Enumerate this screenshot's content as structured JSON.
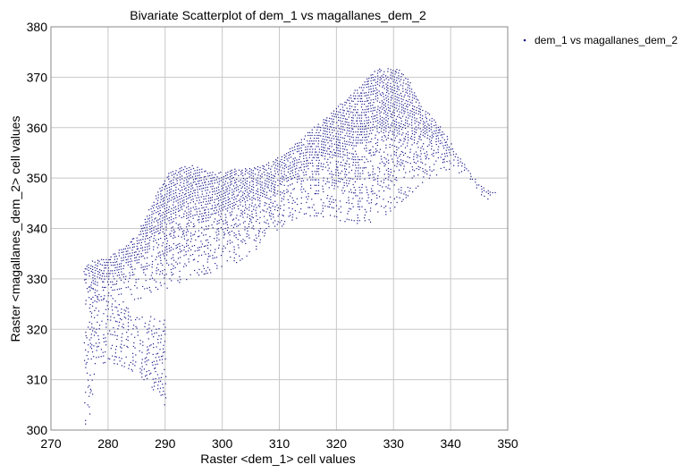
{
  "chart_data": {
    "type": "scatter",
    "title": "Bivariate Scatterplot of dem_1 vs magallanes_dem_2",
    "xlabel": "Raster <dem_1> cell values",
    "ylabel": "Raster <magallanes_dem_2> cell values",
    "xlim": [
      270,
      350
    ],
    "ylim": [
      300,
      380
    ],
    "xticks": [
      270,
      280,
      290,
      300,
      310,
      320,
      330,
      340,
      350
    ],
    "yticks": [
      300,
      310,
      320,
      330,
      340,
      350,
      360,
      370,
      380
    ],
    "grid": true,
    "legend_position": "top-right",
    "point_color": "#1a1a8c",
    "series": [
      {
        "name": "dem_1 vs magallanes_dem_2",
        "color": "#1a1a8c",
        "upper_envelope": [
          [
            275.5,
            331.5
          ],
          [
            277,
            333.5
          ],
          [
            279,
            334
          ],
          [
            281,
            335
          ],
          [
            283,
            336.5
          ],
          [
            285,
            339
          ],
          [
            287,
            343
          ],
          [
            289,
            348
          ],
          [
            291,
            351.5
          ],
          [
            293,
            352.5
          ],
          [
            295,
            352.5
          ],
          [
            297,
            351.5
          ],
          [
            299,
            351
          ],
          [
            301,
            351.5
          ],
          [
            303,
            352
          ],
          [
            305,
            352
          ],
          [
            307,
            352.5
          ],
          [
            309,
            353.5
          ],
          [
            311,
            355
          ],
          [
            313,
            357
          ],
          [
            315,
            359
          ],
          [
            317,
            361
          ],
          [
            319,
            363
          ],
          [
            321,
            365
          ],
          [
            323,
            367
          ],
          [
            325,
            369.5
          ],
          [
            327,
            371.5
          ],
          [
            329,
            372
          ],
          [
            331,
            371.5
          ],
          [
            333,
            369
          ],
          [
            335,
            364
          ],
          [
            337,
            362
          ],
          [
            339,
            359
          ],
          [
            340,
            357
          ],
          [
            341,
            355
          ],
          [
            343,
            352
          ],
          [
            345,
            349
          ],
          [
            347,
            347.5
          ],
          [
            348,
            347
          ]
        ],
        "lower_envelope": [
          [
            275.5,
            331.5
          ],
          [
            276.5,
            327
          ],
          [
            277,
            326
          ],
          [
            279,
            325
          ],
          [
            281,
            325
          ],
          [
            283,
            325.5
          ],
          [
            285,
            326
          ],
          [
            287,
            326.5
          ],
          [
            289,
            327.5
          ],
          [
            291,
            328.5
          ],
          [
            293,
            329.5
          ],
          [
            295,
            330.5
          ],
          [
            297,
            331
          ],
          [
            299,
            331.5
          ],
          [
            301,
            332.5
          ],
          [
            303,
            333.5
          ],
          [
            305,
            335
          ],
          [
            307,
            337
          ],
          [
            309,
            339
          ],
          [
            311,
            341
          ],
          [
            313,
            342
          ],
          [
            315,
            342.5
          ],
          [
            317,
            342.5
          ],
          [
            319,
            342
          ],
          [
            321,
            341.5
          ],
          [
            323,
            341
          ],
          [
            325,
            341
          ],
          [
            327,
            341.5
          ],
          [
            329,
            343
          ],
          [
            331,
            345
          ],
          [
            333,
            347
          ],
          [
            335,
            349
          ],
          [
            337,
            350.5
          ],
          [
            339,
            351
          ],
          [
            341,
            351.5
          ],
          [
            343,
            350
          ],
          [
            345,
            347
          ],
          [
            347,
            345.5
          ],
          [
            348,
            347
          ]
        ],
        "lower_extension_top": [
          [
            276,
            330
          ],
          [
            278,
            327
          ],
          [
            280,
            326
          ],
          [
            282,
            325
          ],
          [
            284,
            324
          ],
          [
            286,
            323
          ],
          [
            288,
            322.5
          ],
          [
            290,
            322
          ]
        ],
        "lower_extension_bottom": [
          [
            276,
            300.5
          ],
          [
            277,
            303
          ],
          [
            278,
            313
          ],
          [
            280,
            313.5
          ],
          [
            282,
            313
          ],
          [
            284,
            312
          ],
          [
            286,
            310.5
          ],
          [
            288,
            308
          ],
          [
            290,
            305
          ]
        ]
      }
    ]
  }
}
